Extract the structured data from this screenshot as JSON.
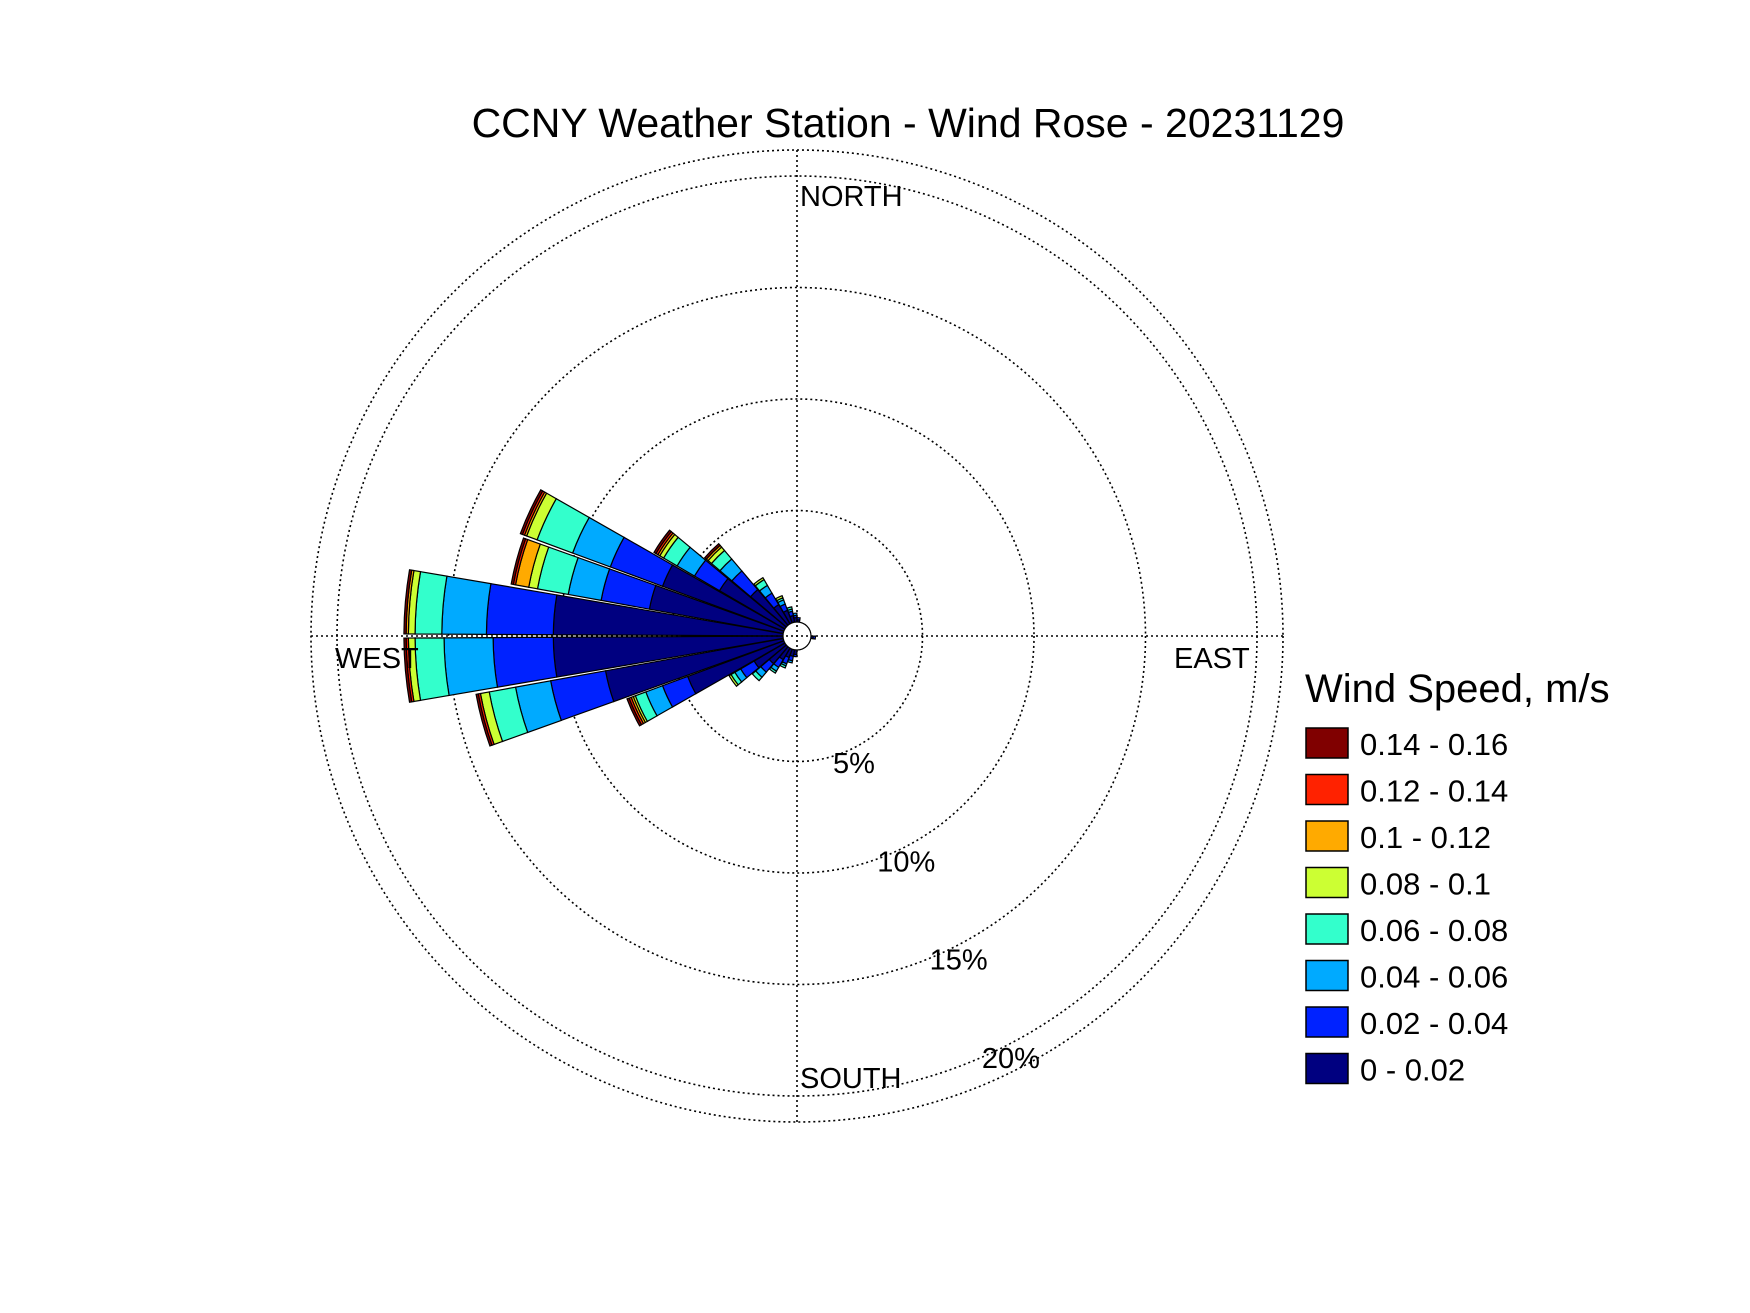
{
  "chart_data": {
    "type": "windrose",
    "title": "CCNY Weather Station - Wind Rose - 20231129",
    "directions": {
      "north": "NORTH",
      "south": "SOUTH",
      "east": "EAST",
      "west": "WEST"
    },
    "radial_ticks": [
      5,
      10,
      15,
      20
    ],
    "radial_tick_labels": [
      "5%",
      "10%",
      "15%",
      "20%"
    ],
    "radial_max": 20,
    "legend": {
      "title": "Wind Speed, m/s",
      "bins": [
        "0.14 - 0.16",
        "0.12 - 0.14",
        "0.1 - 0.12",
        "0.08 - 0.1",
        "0.06 - 0.08",
        "0.04 - 0.06",
        "0.02 - 0.04",
        "0 - 0.02"
      ]
    },
    "bin_colors": [
      "#000080",
      "#0022ff",
      "#00aaff",
      "#33ffcc",
      "#ccff33",
      "#ffaa00",
      "#ff2200",
      "#800000"
    ],
    "sector_width_deg": 10,
    "sectors": [
      {
        "direction_deg": 265,
        "cumulative_pct": [
          10.3,
          13.0,
          15.2,
          16.5,
          16.8,
          16.8,
          16.9,
          17.0
        ]
      },
      {
        "direction_deg": 275,
        "cumulative_pct": [
          10.3,
          13.3,
          15.3,
          16.5,
          16.8,
          16.9,
          16.9,
          17.0
        ]
      },
      {
        "direction_deg": 285,
        "cumulative_pct": [
          6.1,
          8.3,
          9.8,
          11.2,
          11.6,
          12.2,
          12.3,
          12.4
        ]
      },
      {
        "direction_deg": 295,
        "cumulative_pct": [
          5.8,
          8.3,
          10.1,
          11.8,
          12.3,
          12.4,
          12.5,
          12.6
        ]
      },
      {
        "direction_deg": 305,
        "cumulative_pct": [
          3.4,
          4.7,
          5.6,
          6.3,
          6.5,
          6.6,
          6.7,
          6.8
        ]
      },
      {
        "direction_deg": 315,
        "cumulative_pct": [
          2.1,
          3.2,
          3.9,
          4.4,
          4.6,
          4.7,
          4.7,
          4.8
        ]
      },
      {
        "direction_deg": 325,
        "cumulative_pct": [
          1.0,
          1.6,
          2.0,
          2.3,
          2.4,
          2.4,
          2.4,
          2.4
        ]
      },
      {
        "direction_deg": 335,
        "cumulative_pct": [
          0.6,
          0.9,
          1.1,
          1.2,
          1.3,
          1.3,
          1.3,
          1.3
        ]
      },
      {
        "direction_deg": 345,
        "cumulative_pct": [
          0.3,
          0.5,
          0.6,
          0.7,
          0.7,
          0.7,
          0.7,
          0.7
        ]
      },
      {
        "direction_deg": 355,
        "cumulative_pct": [
          0.2,
          0.3,
          0.4,
          0.4,
          0.4,
          0.4,
          0.4,
          0.4
        ]
      },
      {
        "direction_deg": 5,
        "cumulative_pct": [
          0.1,
          0.2,
          0.2,
          0.2,
          0.2,
          0.2,
          0.2,
          0.2
        ]
      },
      {
        "direction_deg": 95,
        "cumulative_pct": [
          0.1,
          0.2,
          0.2,
          0.2,
          0.2,
          0.2,
          0.2,
          0.2
        ]
      },
      {
        "direction_deg": 185,
        "cumulative_pct": [
          0.2,
          0.3,
          0.3,
          0.3,
          0.3,
          0.3,
          0.3,
          0.3
        ]
      },
      {
        "direction_deg": 195,
        "cumulative_pct": [
          0.3,
          0.5,
          0.6,
          0.6,
          0.6,
          0.6,
          0.6,
          0.6
        ]
      },
      {
        "direction_deg": 205,
        "cumulative_pct": [
          0.4,
          0.7,
          0.8,
          0.9,
          0.9,
          0.9,
          0.9,
          0.9
        ]
      },
      {
        "direction_deg": 215,
        "cumulative_pct": [
          0.6,
          1.0,
          1.2,
          1.3,
          1.3,
          1.3,
          1.3,
          1.3
        ]
      },
      {
        "direction_deg": 225,
        "cumulative_pct": [
          1.0,
          1.5,
          1.8,
          2.0,
          2.0,
          2.0,
          2.0,
          2.0
        ]
      },
      {
        "direction_deg": 235,
        "cumulative_pct": [
          1.6,
          2.3,
          2.6,
          2.8,
          2.9,
          2.9,
          2.9,
          2.9
        ]
      },
      {
        "direction_deg": 245,
        "cumulative_pct": [
          4.6,
          5.8,
          6.6,
          7.1,
          7.2,
          7.3,
          7.4,
          7.5
        ]
      },
      {
        "direction_deg": 255,
        "cumulative_pct": [
          8.1,
          10.6,
          12.2,
          13.4,
          13.8,
          13.8,
          13.9,
          14.0
        ]
      }
    ]
  }
}
